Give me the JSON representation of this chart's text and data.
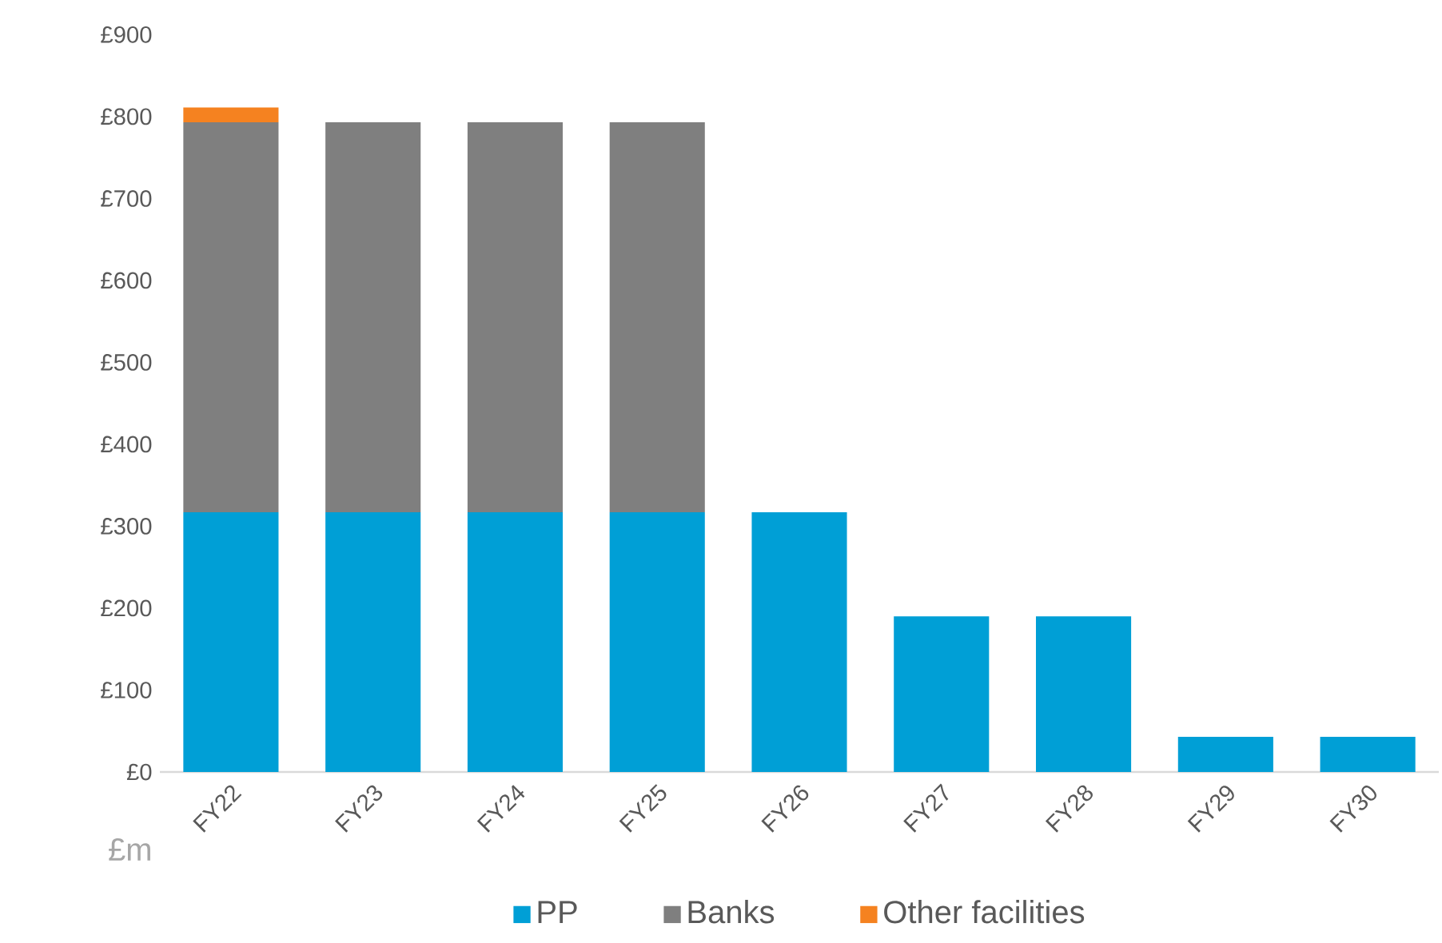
{
  "chart_data": {
    "type": "bar",
    "stacked": true,
    "ylabel": "£m",
    "categories": [
      "FY22",
      "FY23",
      "FY24",
      "FY25",
      "FY26",
      "FY27",
      "FY28",
      "FY29",
      "FY30"
    ],
    "series": [
      {
        "name": "PP",
        "color": "#009fd6",
        "values": [
          317,
          317,
          317,
          317,
          317,
          190,
          190,
          43,
          43
        ]
      },
      {
        "name": "Banks",
        "color": "#7f7f7f",
        "values": [
          476,
          476,
          476,
          476,
          0,
          0,
          0,
          0,
          0
        ]
      },
      {
        "name": "Other facilities",
        "color": "#f58220",
        "values": [
          18,
          0,
          0,
          0,
          0,
          0,
          0,
          0,
          0
        ]
      }
    ],
    "ylim": [
      0,
      900
    ],
    "yticks": [
      {
        "value": 0,
        "label": "£0"
      },
      {
        "value": 100,
        "label": "£100"
      },
      {
        "value": 200,
        "label": "£200"
      },
      {
        "value": 300,
        "label": "£300"
      },
      {
        "value": 400,
        "label": "£400"
      },
      {
        "value": 500,
        "label": "£500"
      },
      {
        "value": 600,
        "label": "£600"
      },
      {
        "value": 700,
        "label": "£700"
      },
      {
        "value": 800,
        "label": "£800"
      },
      {
        "value": 900,
        "label": "£900"
      }
    ],
    "grid": false,
    "legend": "bottom"
  }
}
